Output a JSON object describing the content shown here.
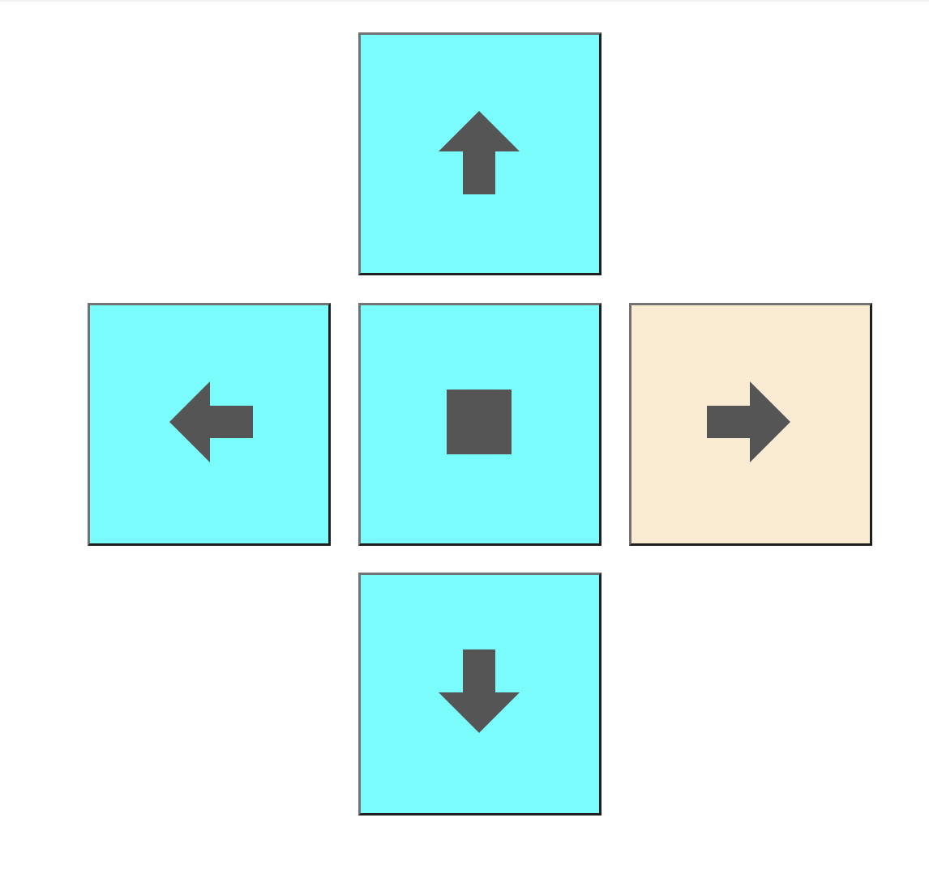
{
  "colors": {
    "button_fill": "#7bfcfc",
    "button_selected_fill": "#faebd3",
    "glyph": "#555555"
  },
  "dpad": {
    "buttons": [
      {
        "id": "up",
        "icon": "arrow-up-icon",
        "selected": false
      },
      {
        "id": "left",
        "icon": "arrow-left-icon",
        "selected": false
      },
      {
        "id": "stop",
        "icon": "stop-square-icon",
        "selected": false
      },
      {
        "id": "right",
        "icon": "arrow-right-icon",
        "selected": true
      },
      {
        "id": "down",
        "icon": "arrow-down-icon",
        "selected": false
      }
    ]
  }
}
